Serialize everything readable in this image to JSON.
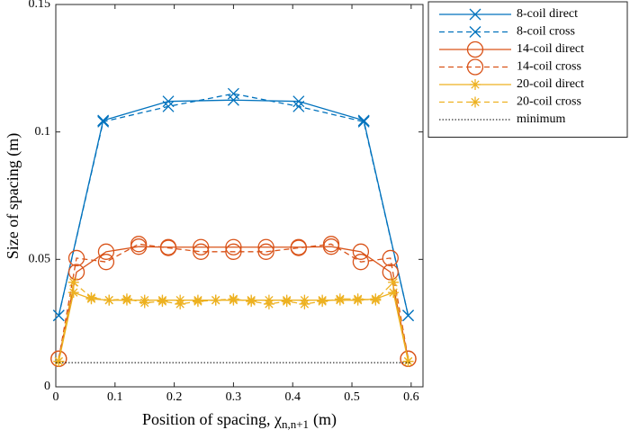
{
  "chart_data": {
    "type": "line",
    "xlabel": [
      "Position of spacing, χ",
      "n,n+1",
      "(m)"
    ],
    "ylabel": "Size of spacing (m)",
    "xlim": [
      0,
      0.62
    ],
    "ylim": [
      0,
      0.15
    ],
    "xticks": [
      0,
      0.1,
      0.2,
      0.3,
      0.4,
      0.5,
      0.6
    ],
    "yticks": [
      0,
      0.05,
      0.1,
      0.15
    ],
    "legend": "outside-top-right",
    "series": [
      {
        "name": "8-coil direct",
        "color": "#0072BD",
        "linestyle": "solid",
        "marker": "x",
        "x": [
          0.005,
          0.08,
          0.19,
          0.3,
          0.41,
          0.52,
          0.595
        ],
        "values": [
          0.028,
          0.1045,
          0.112,
          0.1125,
          0.112,
          0.1045,
          0.028
        ]
      },
      {
        "name": "8-coil cross",
        "color": "#0072BD",
        "linestyle": "dashed",
        "marker": "x",
        "x": [
          0.005,
          0.08,
          0.19,
          0.3,
          0.41,
          0.52,
          0.595
        ],
        "values": [
          0.028,
          0.104,
          0.11,
          0.115,
          0.11,
          0.104,
          0.028
        ]
      },
      {
        "name": "14-coil direct",
        "color": "#D95319",
        "linestyle": "solid",
        "marker": "o",
        "x": [
          0.005,
          0.035,
          0.085,
          0.14,
          0.19,
          0.245,
          0.3,
          0.355,
          0.41,
          0.465,
          0.515,
          0.565,
          0.595
        ],
        "values": [
          0.011,
          0.045,
          0.053,
          0.055,
          0.0548,
          0.0548,
          0.0548,
          0.0548,
          0.0548,
          0.055,
          0.053,
          0.045,
          0.011
        ]
      },
      {
        "name": "14-coil cross",
        "color": "#D95319",
        "linestyle": "dashed",
        "marker": "o",
        "x": [
          0.005,
          0.035,
          0.085,
          0.14,
          0.19,
          0.245,
          0.3,
          0.355,
          0.41,
          0.465,
          0.515,
          0.565,
          0.595
        ],
        "values": [
          0.011,
          0.0505,
          0.049,
          0.056,
          0.0545,
          0.053,
          0.053,
          0.053,
          0.0545,
          0.056,
          0.049,
          0.0505,
          0.011
        ]
      },
      {
        "name": "20-coil direct",
        "color": "#EDB120",
        "linestyle": "solid",
        "marker": "asterisk",
        "x": [
          0.005,
          0.03,
          0.06,
          0.09,
          0.12,
          0.15,
          0.18,
          0.21,
          0.24,
          0.27,
          0.3,
          0.33,
          0.36,
          0.39,
          0.42,
          0.45,
          0.48,
          0.51,
          0.54,
          0.57,
          0.595
        ],
        "values": [
          0.01,
          0.037,
          0.0345,
          0.034,
          0.034,
          0.034,
          0.034,
          0.034,
          0.034,
          0.034,
          0.034,
          0.034,
          0.034,
          0.034,
          0.034,
          0.034,
          0.034,
          0.034,
          0.0345,
          0.037,
          0.01
        ]
      },
      {
        "name": "20-coil cross",
        "color": "#EDB120",
        "linestyle": "dashed",
        "marker": "asterisk",
        "x": [
          0.005,
          0.03,
          0.06,
          0.09,
          0.12,
          0.15,
          0.18,
          0.21,
          0.24,
          0.27,
          0.3,
          0.33,
          0.36,
          0.39,
          0.42,
          0.45,
          0.48,
          0.51,
          0.54,
          0.57,
          0.595
        ],
        "values": [
          0.01,
          0.041,
          0.035,
          0.034,
          0.0345,
          0.033,
          0.0335,
          0.0325,
          0.0335,
          0.034,
          0.0345,
          0.0335,
          0.0325,
          0.0335,
          0.0325,
          0.0335,
          0.0345,
          0.0345,
          0.034,
          0.041,
          0.01
        ]
      },
      {
        "name": "minimum",
        "color": "#000000",
        "linestyle": "dotted",
        "marker": "none",
        "x": [
          0,
          0.6
        ],
        "values": [
          0.0095,
          0.0095
        ]
      }
    ]
  }
}
